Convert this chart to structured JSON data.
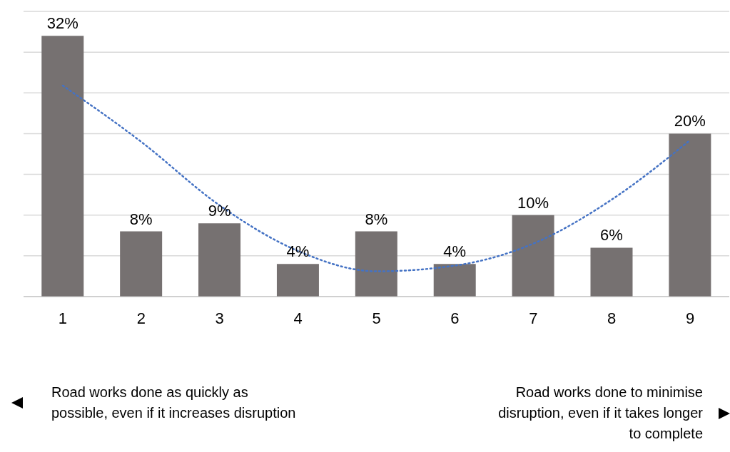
{
  "chart_data": {
    "type": "bar",
    "categories": [
      "1",
      "2",
      "3",
      "4",
      "5",
      "6",
      "7",
      "8",
      "9"
    ],
    "series": [
      {
        "color": "#767171",
        "values": [
          32,
          8,
          9,
          4,
          8,
          4,
          10,
          6,
          20
        ],
        "value_labels": [
          "32%",
          "8%",
          "9%",
          "4%",
          "8%",
          "4%",
          "10%",
          "6%",
          "20%"
        ]
      },
      {
        "type": "line",
        "color": "#4472c4",
        "values": [
          25.9,
          19.0,
          11.2,
          5.6,
          3.1,
          3.8,
          6.5,
          11.9,
          19.2
        ],
        "line_style": "dotted",
        "marker": "none"
      }
    ],
    "ylim": [
      0,
      35
    ],
    "yticks": [
      {
        "value": 0,
        "label": null
      },
      {
        "value": 5,
        "label": null
      },
      {
        "value": 10,
        "label": null
      },
      {
        "value": 15,
        "label": null
      },
      {
        "value": 20,
        "label": null
      },
      {
        "value": 25,
        "label": null
      },
      {
        "value": 30,
        "label": null
      },
      {
        "value": 35,
        "label": null
      }
    ],
    "tick_labels": "x",
    "grid": "y",
    "legend": false,
    "annotations": [
      "Road works done as quickly as possible, even if it increases disruption",
      "Road works done to minimise disruption, even if it takes longer to complete"
    ]
  }
}
